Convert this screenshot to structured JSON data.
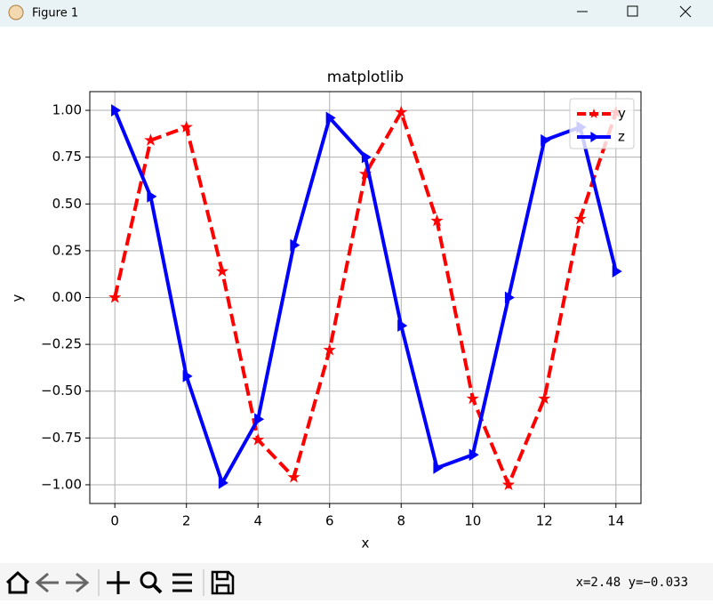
{
  "window": {
    "title": "Figure 1",
    "status": "x=2.48 y=−0.033"
  },
  "chart_data": {
    "type": "line",
    "title": "matplotlib",
    "x_label": "x",
    "y_label": "y",
    "x": [
      0,
      1,
      2,
      3,
      4,
      5,
      6,
      7,
      8,
      9,
      10,
      11,
      12,
      13,
      14
    ],
    "series": [
      {
        "name": "y",
        "color": "#ff0000",
        "dash": "dashed",
        "marker": "star",
        "values": [
          0,
          0.84,
          0.91,
          0.14,
          -0.76,
          -0.96,
          -0.28,
          0.66,
          0.99,
          0.41,
          -0.54,
          -1.0,
          -0.54,
          0.42,
          0.99
        ]
      },
      {
        "name": "z",
        "color": "#0000ff",
        "dash": "solid",
        "marker": "triangle-right",
        "values": [
          1.0,
          0.54,
          -0.42,
          -0.99,
          -0.65,
          0.28,
          0.96,
          0.75,
          -0.15,
          -0.91,
          -0.84,
          0.0,
          0.84,
          0.91,
          0.14
        ]
      }
    ],
    "xlim": [
      -0.7,
      14.7
    ],
    "xticks": [
      0,
      2,
      4,
      6,
      8,
      10,
      12,
      14
    ],
    "ylim": [
      -1.1,
      1.1
    ],
    "yticks": [
      {
        "value": -1,
        "label": "−1.00"
      },
      {
        "value": -0.75,
        "label": "−0.75"
      },
      {
        "value": -0.5,
        "label": "−0.50"
      },
      {
        "value": -0.25,
        "label": "−0.25"
      },
      {
        "value": 0,
        "label": "0.00"
      },
      {
        "value": 0.25,
        "label": "0.25"
      },
      {
        "value": 0.5,
        "label": "0.50"
      },
      {
        "value": 0.75,
        "label": "0.75"
      },
      {
        "value": 1,
        "label": "1.00"
      }
    ],
    "grid": true,
    "legend": "upper right"
  }
}
